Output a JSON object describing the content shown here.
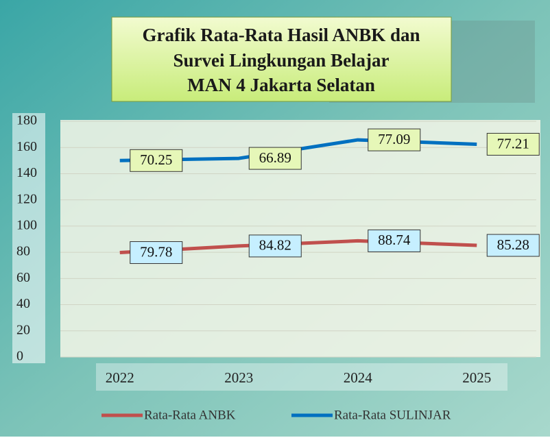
{
  "chart_data": {
    "type": "line",
    "stacked": true,
    "title": "Grafik Rata-Rata Hasil ANBK dan",
    "subtitle": [
      "Survei Lingkungan Belajar",
      "MAN 4 Jakarta Selatan"
    ],
    "categories": [
      "2022",
      "2023",
      "2024",
      "2025"
    ],
    "series": [
      {
        "name": "Rata-Rata ANBK",
        "color": "#c0504d",
        "label_fill": "#c6efff",
        "values": [
          79.78,
          84.82,
          88.74,
          85.28
        ]
      },
      {
        "name": "Rata-Rata SULINJAR",
        "color": "#0070c0",
        "label_fill": "#e6f7b8",
        "values": [
          70.25,
          66.89,
          77.09,
          77.21
        ]
      }
    ],
    "ylim": [
      0,
      180
    ],
    "yticks": [
      0,
      20,
      40,
      60,
      80,
      100,
      120,
      140,
      160,
      180
    ],
    "grid": true,
    "legend": "bottom"
  }
}
